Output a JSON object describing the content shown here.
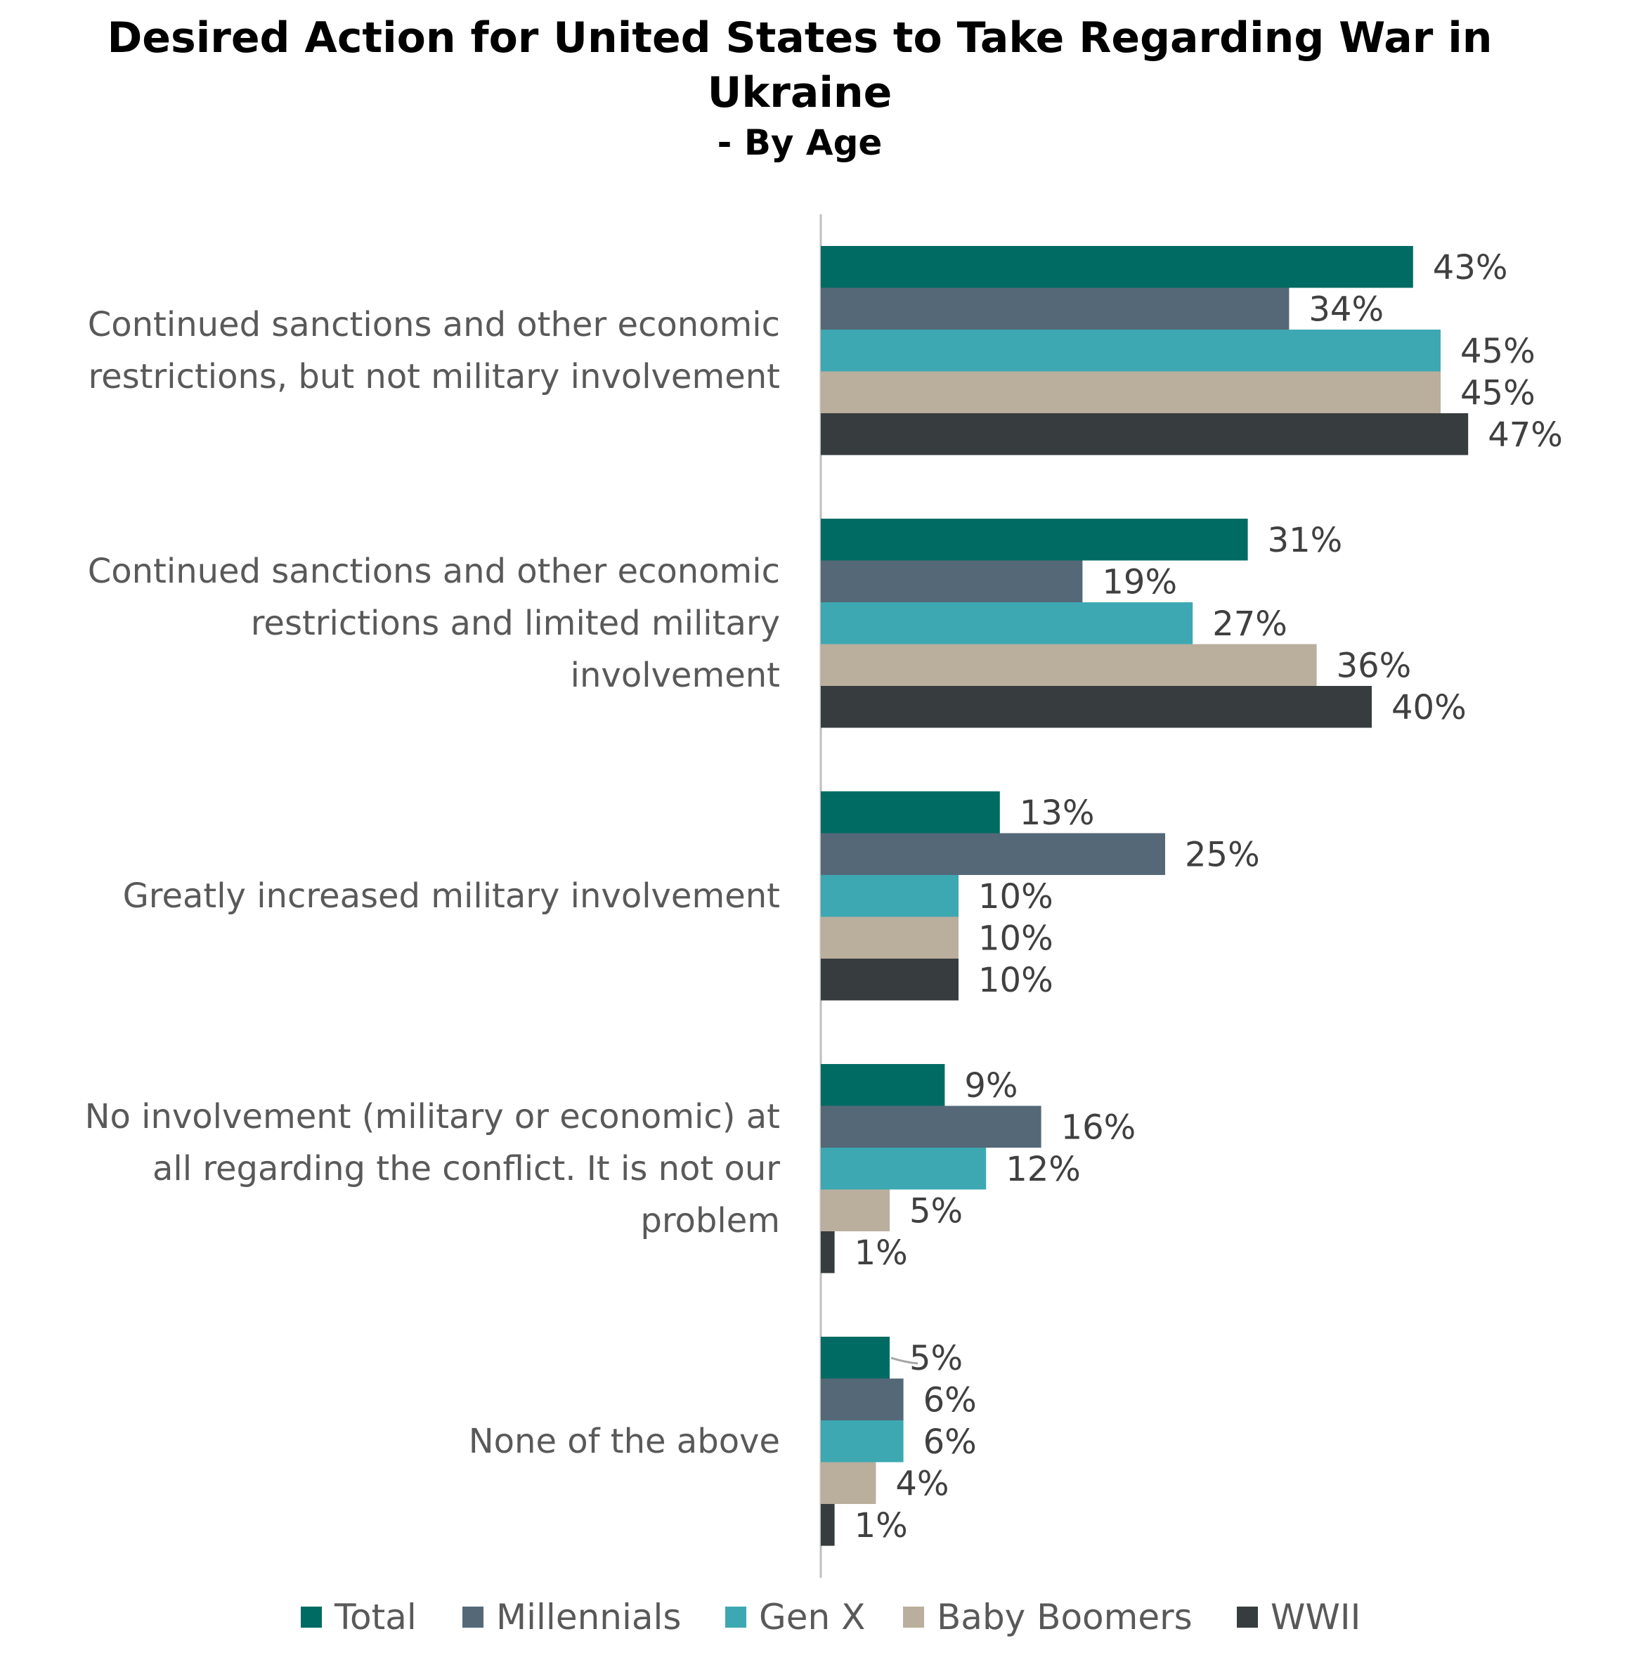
{
  "chart_data": {
    "type": "bar",
    "orientation": "horizontal",
    "title_lines": [
      "Desired Action for United States to Take Regarding War in",
      "Ukraine"
    ],
    "subtitle": "- By Age",
    "categories": [
      [
        "Continued sanctions and other economic",
        "restrictions, but not military involvement"
      ],
      [
        "Continued sanctions and other economic",
        "restrictions and limited military",
        "involvement"
      ],
      [
        "Greatly increased military involvement"
      ],
      [
        "No involvement (military or economic) at",
        "all regarding the conflict.  It is not our",
        "problem"
      ],
      [
        "None of the above"
      ]
    ],
    "series": [
      {
        "name": "Total",
        "color": "#006B63",
        "values": [
          43,
          31,
          13,
          9,
          5
        ],
        "labels": [
          "43%",
          "31%",
          "13%",
          "9%",
          "5%"
        ]
      },
      {
        "name": "Millennials",
        "color": "#546878",
        "values": [
          34,
          19,
          25,
          16,
          6
        ],
        "labels": [
          "34%",
          "19%",
          "25%",
          "16%",
          "6%"
        ]
      },
      {
        "name": "Gen X",
        "color": "#3DA8B2",
        "values": [
          45,
          27,
          10,
          12,
          6
        ],
        "labels": [
          "45%",
          "27%",
          "10%",
          "12%",
          "6%"
        ]
      },
      {
        "name": "Baby Boomers",
        "color": "#BAAE9D",
        "values": [
          45,
          36,
          10,
          5,
          4
        ],
        "labels": [
          "45%",
          "36%",
          "10%",
          "5%",
          "4%"
        ]
      },
      {
        "name": "WWII",
        "color": "#373C3E",
        "values": [
          47,
          40,
          10,
          1,
          1
        ],
        "labels": [
          "47%",
          "40%",
          "10%",
          "1%",
          "1%"
        ]
      }
    ],
    "legend_position": "bottom",
    "value_axis_range": [
      0,
      50
    ],
    "grid": false
  }
}
